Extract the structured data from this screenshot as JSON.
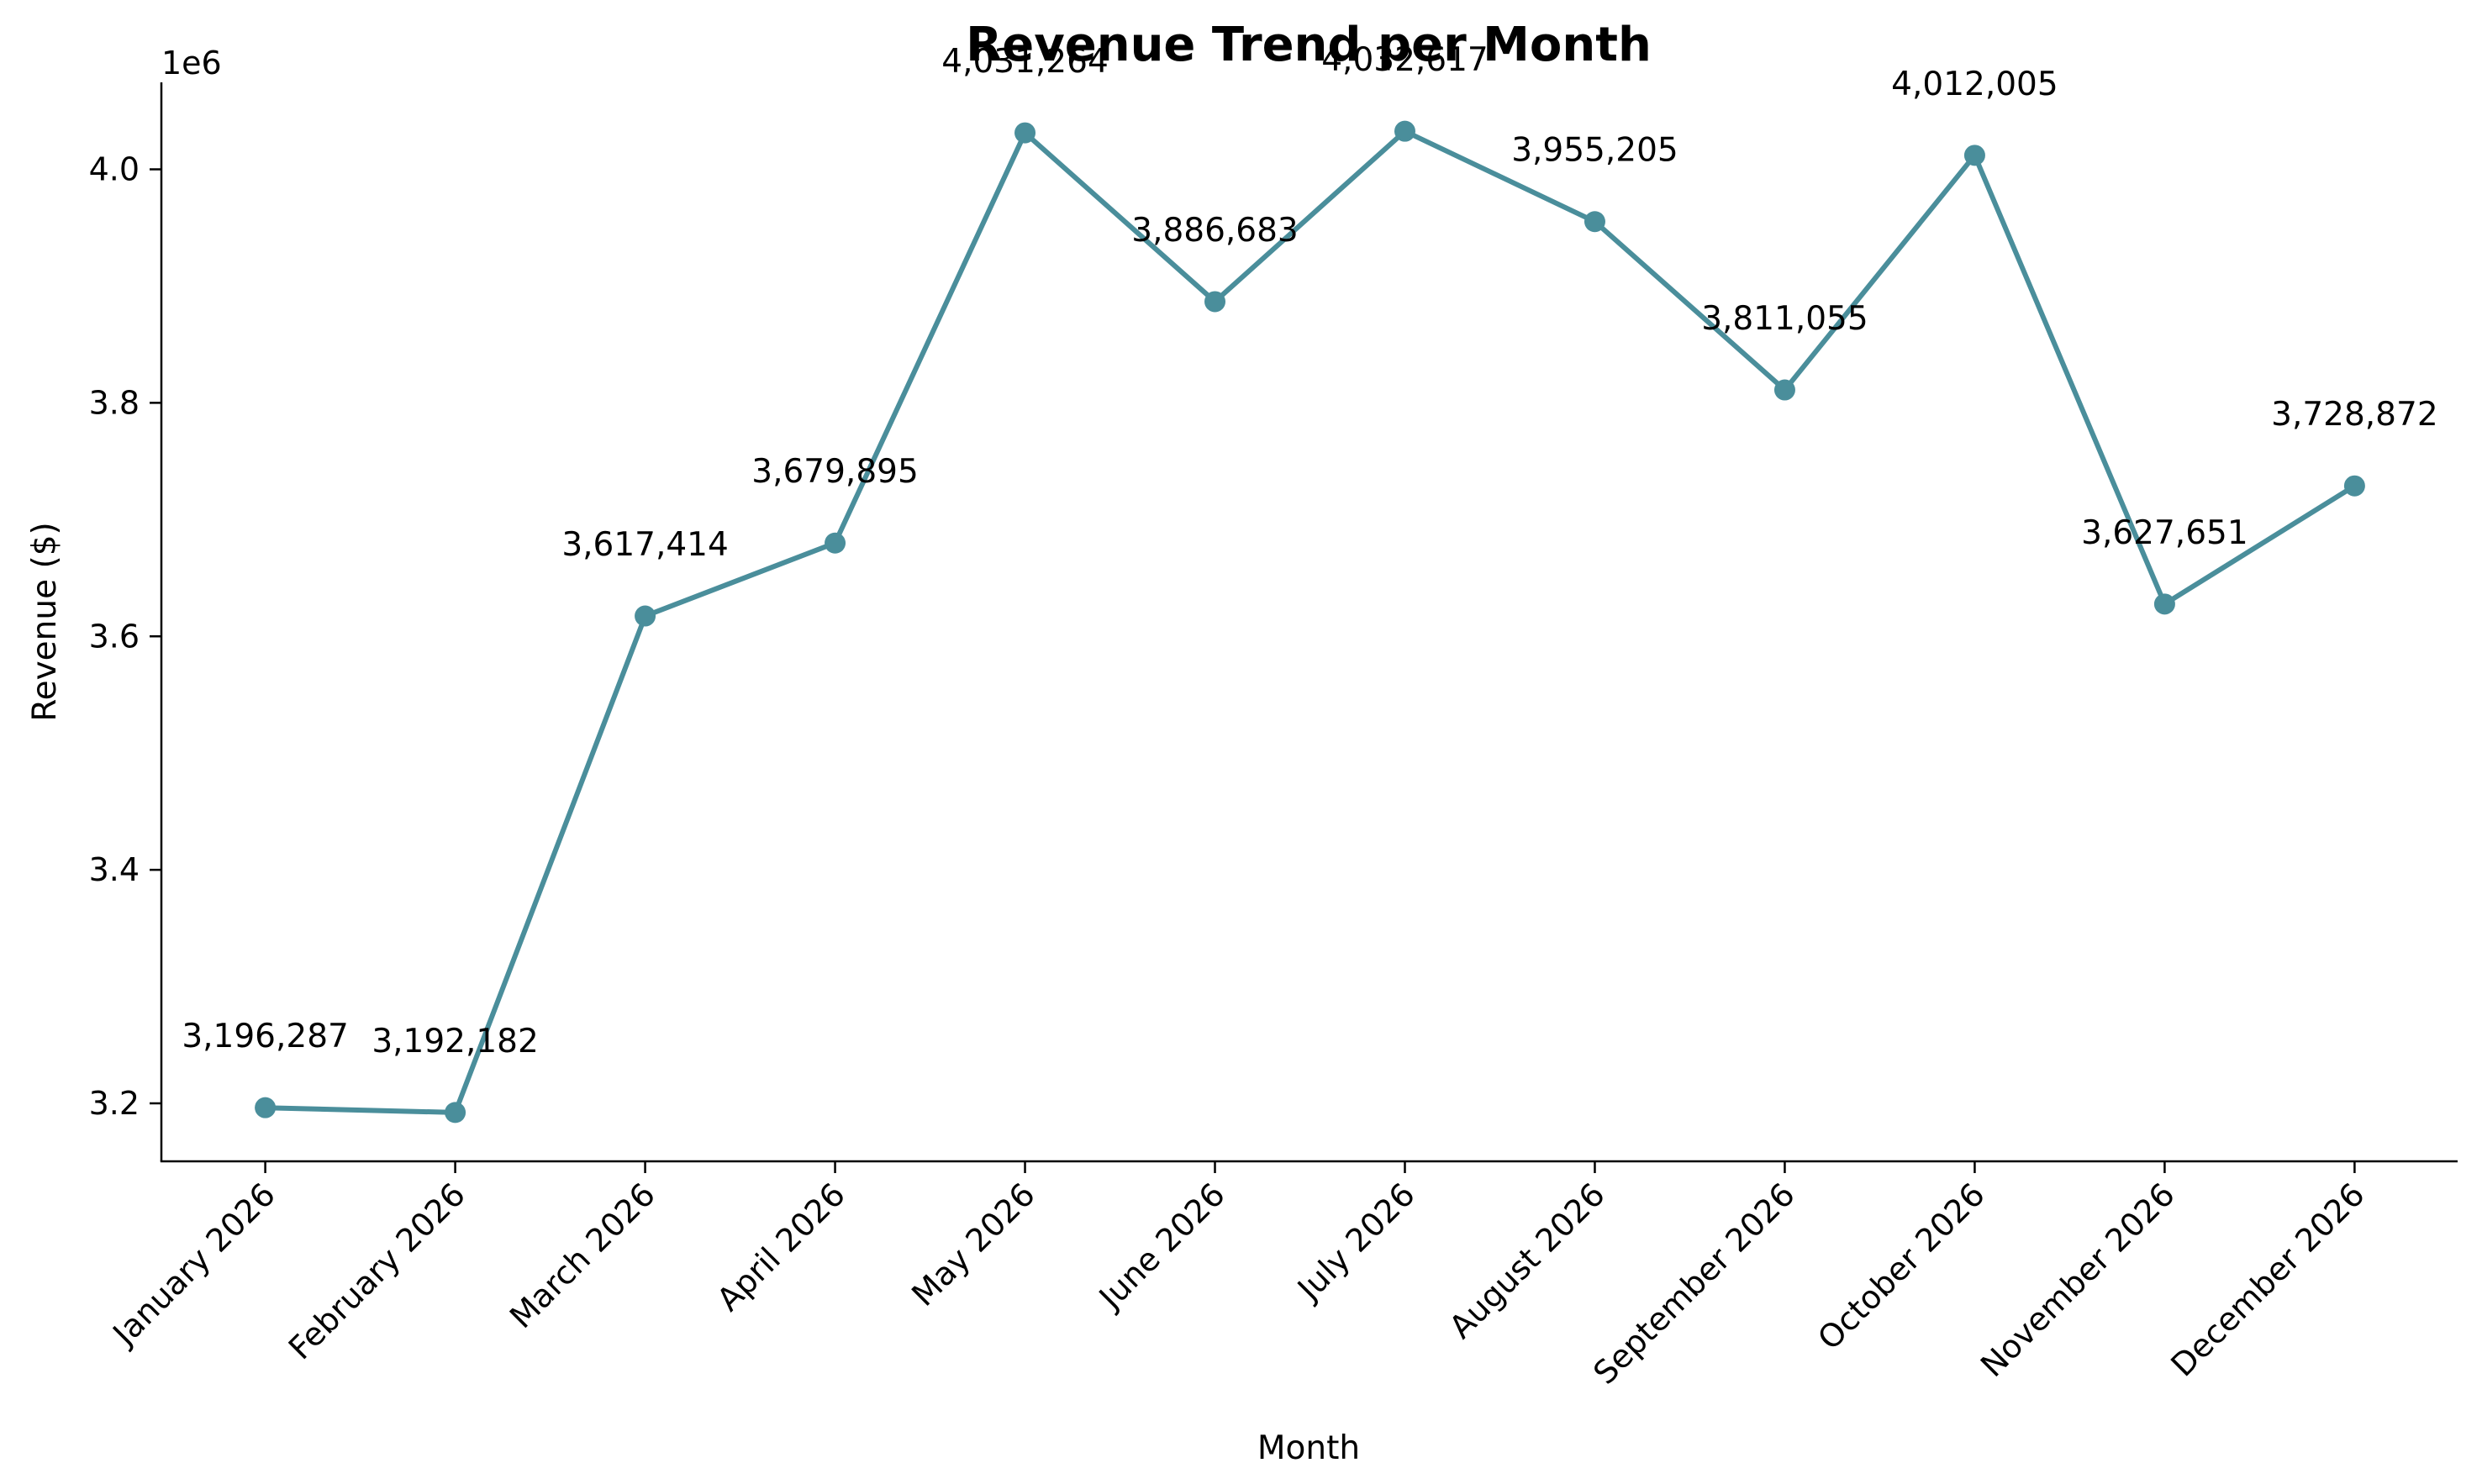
{
  "chart_data": {
    "type": "line",
    "title": "Revenue Trend per Month",
    "xlabel": "Month",
    "ylabel": "Revenue ($)",
    "y_scale_label": "1e6",
    "ylim": [
      3.15,
      4.075
    ],
    "y_ticks": [
      3.2,
      3.4,
      3.6,
      3.8,
      4.0
    ],
    "y_tick_labels": [
      "3.2",
      "3.4",
      "3.6",
      "3.8",
      "4.0"
    ],
    "grid": false,
    "legend": "none",
    "categories": [
      "January 2026",
      "February 2026",
      "March 2026",
      "April 2026",
      "May 2026",
      "June 2026",
      "July 2026",
      "August 2026",
      "September 2026",
      "October 2026",
      "November 2026",
      "December 2026"
    ],
    "values": [
      3196287,
      3192182,
      3617414,
      3679895,
      4031264,
      3886683,
      4032617,
      3955205,
      3811055,
      4012005,
      3627651,
      3728872
    ],
    "data_labels": [
      "3,196,287",
      "3,192,182",
      "3,617,414",
      "3,679,895",
      "4,031,264",
      "3,886,683",
      "4,032,617",
      "3,955,205",
      "3,811,055",
      "4,012,005",
      "3,627,651",
      "3,728,872"
    ],
    "colors": {
      "line": "#4a8e9b",
      "marker": "#4a8e9b"
    }
  }
}
